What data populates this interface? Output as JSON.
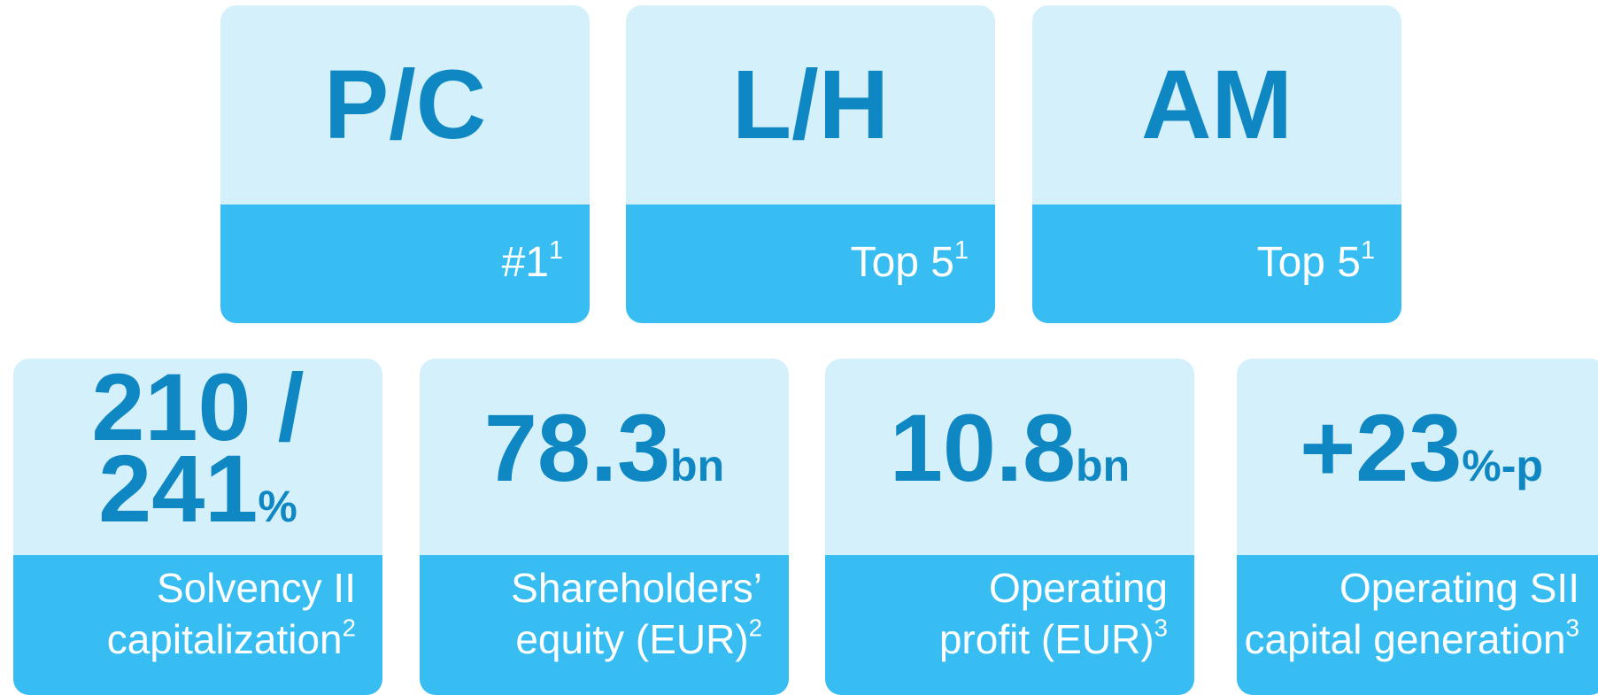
{
  "top_tiles": [
    {
      "title": "P/C",
      "label": "#1",
      "footnote": "1"
    },
    {
      "title": "L/H",
      "label": "Top 5",
      "footnote": "1"
    },
    {
      "title": "AM",
      "label": "Top 5",
      "footnote": "1"
    }
  ],
  "bottom_tiles": [
    {
      "value_lines": [
        "210 /",
        "241"
      ],
      "unit": "%",
      "label_lines": [
        "Solvency II",
        "capitalization"
      ],
      "footnote": "2"
    },
    {
      "value_lines": [
        "78.3"
      ],
      "unit": "bn",
      "label_lines": [
        "Shareholders’",
        "equity (EUR)"
      ],
      "footnote": "2"
    },
    {
      "value_lines": [
        "10.8"
      ],
      "unit": "bn",
      "label_lines": [
        "Operating",
        "profit (EUR)"
      ],
      "footnote": "3"
    },
    {
      "value_lines": [
        "+23"
      ],
      "unit": "%-p",
      "label_lines": [
        "Operating SII",
        "capital generation"
      ],
      "footnote": "3"
    }
  ]
}
